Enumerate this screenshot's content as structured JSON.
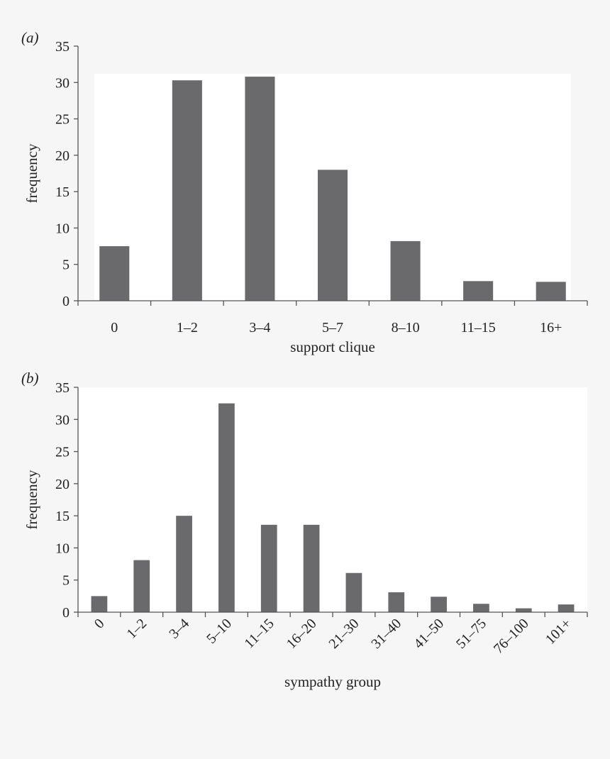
{
  "chart_data": [
    {
      "panel_label": "(a)",
      "type": "bar",
      "title": "",
      "xlabel": "support clique",
      "ylabel": "frequency",
      "categories": [
        "0",
        "1–2",
        "3–4",
        "5–7",
        "8–10",
        "11–15",
        "16+"
      ],
      "values": [
        7.5,
        30.3,
        30.8,
        18.0,
        8.2,
        2.7,
        2.6
      ],
      "ylim": [
        0,
        35
      ],
      "yticks": [
        "0",
        "5",
        "10",
        "15",
        "20",
        "25",
        "30",
        "35"
      ],
      "grid": false,
      "legend": "none",
      "bar_color": "#6a6a6c",
      "tick_label_rotation": 0
    },
    {
      "panel_label": "(b)",
      "type": "bar",
      "title": "",
      "xlabel": "sympathy group",
      "ylabel": "frequency",
      "categories": [
        "0",
        "1–2",
        "3–4",
        "5–10",
        "11–15",
        "16–20",
        "21–30",
        "31–40",
        "41–50",
        "51–75",
        "76–100",
        "101+"
      ],
      "values": [
        2.5,
        8.1,
        15.0,
        32.5,
        13.6,
        13.6,
        6.1,
        3.1,
        2.4,
        1.3,
        0.6,
        1.2
      ],
      "ylim": [
        0,
        35
      ],
      "yticks": [
        "0",
        "5",
        "10",
        "15",
        "20",
        "25",
        "30",
        "35"
      ],
      "grid": false,
      "legend": "none",
      "bar_color": "#6a6a6c",
      "tick_label_rotation": -45
    }
  ]
}
